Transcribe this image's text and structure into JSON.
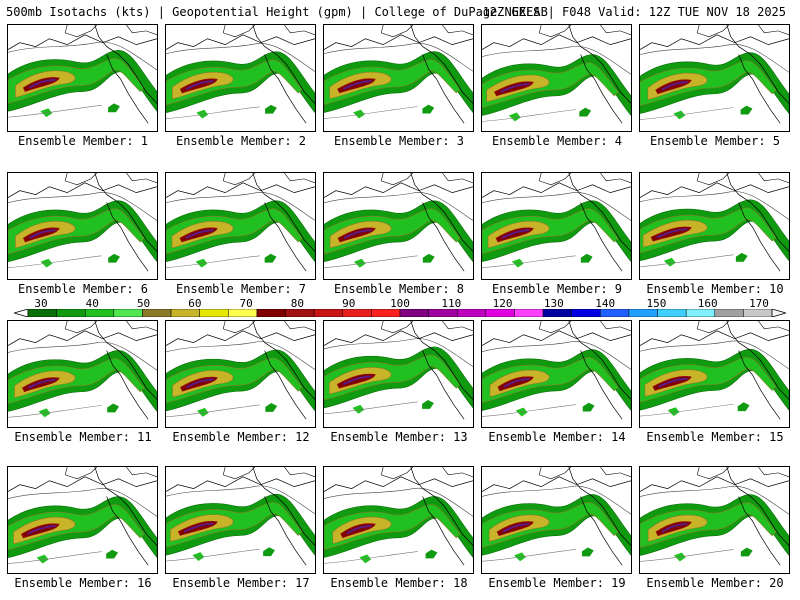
{
  "header": {
    "left": "500mb Isotachs (kts) | Geopotential Height (gpm) | College of DuPage NEXLAB",
    "right": "12Z GEFS | F048 Valid: 12Z TUE NOV 18 2025"
  },
  "panels": [
    {
      "label": "Ensemble Member: 1"
    },
    {
      "label": "Ensemble Member: 2"
    },
    {
      "label": "Ensemble Member: 3"
    },
    {
      "label": "Ensemble Member: 4"
    },
    {
      "label": "Ensemble Member: 5"
    },
    {
      "label": "Ensemble Member: 6"
    },
    {
      "label": "Ensemble Member: 7"
    },
    {
      "label": "Ensemble Member: 8"
    },
    {
      "label": "Ensemble Member: 9"
    },
    {
      "label": "Ensemble Member: 10"
    },
    {
      "label": "Ensemble Member: 11"
    },
    {
      "label": "Ensemble Member: 12"
    },
    {
      "label": "Ensemble Member: 13"
    },
    {
      "label": "Ensemble Member: 14"
    },
    {
      "label": "Ensemble Member: 15"
    },
    {
      "label": "Ensemble Member: 16"
    },
    {
      "label": "Ensemble Member: 17"
    },
    {
      "label": "Ensemble Member: 18"
    },
    {
      "label": "Ensemble Member: 19"
    },
    {
      "label": "Ensemble Member: 20"
    }
  ],
  "legend": {
    "ticks": [
      "30",
      "40",
      "50",
      "60",
      "70",
      "80",
      "90",
      "100",
      "110",
      "120",
      "130",
      "140",
      "150",
      "160",
      "170"
    ],
    "colors": [
      "#0a6e0a",
      "#0f9a0f",
      "#20c020",
      "#50e650",
      "#8a7a28",
      "#c8b428",
      "#e6e600",
      "#ffff50",
      "#800000",
      "#a01010",
      "#c81414",
      "#e61e1e",
      "#ff2020",
      "#800080",
      "#a000a0",
      "#c000c0",
      "#e000e0",
      "#ff40ff",
      "#0000a0",
      "#0000e0",
      "#2060ff",
      "#20a0ff",
      "#40d0ff",
      "#80f0ff",
      "#a0a0a0",
      "#c8c8c8"
    ]
  }
}
